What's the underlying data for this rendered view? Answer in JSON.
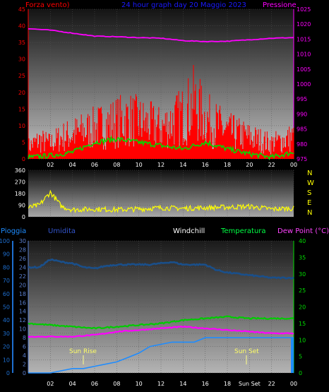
{
  "header": {
    "left_label": "Forza vento)",
    "title": "24 hour graph day  20 Maggio 2023",
    "right_label": "Pressione"
  },
  "legend2": {
    "pioggia": "Pioggia",
    "umidita": "Umidita",
    "windchill": "Windchill",
    "temperatura": "Temperatura",
    "dewpoint": "Dew Point (°C)"
  },
  "compass": [
    "N",
    "W",
    "S",
    "E",
    "N"
  ],
  "annotations": {
    "sun_rise": "Sun Rise",
    "sun_set": "Sun Set"
  },
  "colors": {
    "wind": "#ff0000",
    "gust": "#00dd00",
    "pressure": "#ff00ff",
    "direction": "#ffff00",
    "humidity": "#1a4f8a",
    "temperature": "#00cc00",
    "dewpoint": "#ff00ff",
    "windchill": "#ffffff",
    "rain": "#1e8cff",
    "axis_left1": "#ff0000",
    "axis_right1": "#ff00ff",
    "axis_rain": "#1e6fd0",
    "axis_hum": "#5a7fd0",
    "axis_temp": "#00dd00"
  },
  "chart_data": [
    {
      "type": "line",
      "name": "wind-pressure",
      "x_ticks": [
        "02",
        "04",
        "06",
        "08",
        "10",
        "12",
        "14",
        "16",
        "18",
        "20",
        "22",
        "00"
      ],
      "y_left_ticks": [
        "0",
        "5",
        "10",
        "15",
        "20",
        "25",
        "30",
        "35",
        "40",
        "45"
      ],
      "y_left_range": [
        0,
        45
      ],
      "y_right_ticks": [
        "975",
        "980",
        "985",
        "990",
        "995",
        "1000",
        "1005",
        "1010",
        "1015",
        "1020",
        "1025"
      ],
      "y_right_range": [
        975,
        1025
      ],
      "series": [
        {
          "name": "Pressione",
          "axis": "right",
          "x": [
            0,
            2,
            4,
            6,
            8,
            10,
            12,
            14,
            16,
            18,
            20,
            22,
            24
          ],
          "values": [
            1018.5,
            1018,
            1017,
            1016,
            1015.8,
            1015.5,
            1015.3,
            1014.5,
            1014.2,
            1014.3,
            1014.8,
            1015.3,
            1015.5
          ]
        },
        {
          "name": "Forza vento",
          "axis": "left",
          "x": [
            0,
            1,
            2,
            3,
            4,
            5,
            6,
            7,
            8,
            9,
            10,
            11,
            12,
            13,
            14,
            15,
            16,
            17,
            18,
            19,
            20,
            21,
            22,
            23,
            24
          ],
          "values": [
            4,
            6,
            5,
            7,
            8,
            9,
            10,
            11,
            12,
            13,
            12,
            11,
            10,
            12,
            14,
            18,
            13,
            11,
            9,
            8,
            7,
            6,
            5,
            6,
            7
          ]
        },
        {
          "name": "Raffica",
          "axis": "left",
          "x": [
            0,
            2,
            4,
            6,
            8,
            10,
            12,
            14,
            16,
            18,
            20,
            22,
            24
          ],
          "values": [
            0.5,
            1,
            2,
            5,
            6,
            5,
            4,
            3,
            5,
            3,
            1.5,
            0.5,
            2
          ]
        }
      ]
    },
    {
      "type": "line",
      "name": "wind-direction",
      "y_left_ticks": [
        "0",
        "90",
        "180",
        "270",
        "360"
      ],
      "y_range": [
        0,
        360
      ],
      "series": [
        {
          "name": "Direzione",
          "x": [
            0,
            1,
            2,
            3,
            4,
            6,
            8,
            10,
            12,
            14,
            16,
            18,
            20,
            22,
            24
          ],
          "values": [
            70,
            90,
            190,
            80,
            55,
            60,
            55,
            60,
            70,
            65,
            70,
            75,
            80,
            60,
            65
          ]
        }
      ]
    },
    {
      "type": "line",
      "name": "rain-humidity-temperature",
      "x_ticks": [
        "02",
        "04",
        "06",
        "08",
        "10",
        "12",
        "14",
        "16",
        "18",
        "Sun Set",
        "22",
        "00"
      ],
      "y_rain_ticks": [
        "0",
        "10",
        "20",
        "30",
        "40",
        "50",
        "60",
        "70",
        "80",
        "90",
        "100"
      ],
      "y_rain_range": [
        0,
        100
      ],
      "y_hum_ticks": [
        "0",
        "2",
        "4",
        "6",
        "8",
        "10",
        "12",
        "14",
        "16",
        "18",
        "20",
        "22",
        "24",
        "26",
        "28",
        "30"
      ],
      "y_hum_range": [
        0,
        30
      ],
      "y_temp_ticks": [
        "0",
        "5",
        "10",
        "15",
        "20",
        "25",
        "30",
        "35",
        "40"
      ],
      "y_temp_range": [
        0,
        40
      ],
      "series": [
        {
          "name": "Umidita",
          "axis": "pct",
          "x": [
            0,
            1,
            2,
            3,
            4,
            5,
            6,
            7,
            8,
            9,
            10,
            11,
            12,
            13,
            14,
            15,
            16,
            17,
            18,
            19,
            20,
            21,
            22,
            23,
            24
          ],
          "values": [
            80,
            80,
            86,
            84,
            83,
            80,
            79,
            81,
            82,
            82,
            82,
            82,
            83,
            84,
            82,
            82,
            82,
            78,
            76,
            75,
            74,
            73,
            72,
            72,
            72
          ]
        },
        {
          "name": "Temperatura",
          "axis": "temp",
          "x": [
            0,
            2,
            4,
            6,
            8,
            10,
            12,
            14,
            16,
            18,
            20,
            22,
            24
          ],
          "values": [
            15,
            14.5,
            14,
            13.5,
            14,
            14.5,
            15,
            16,
            16.5,
            17,
            16.5,
            16.5,
            16.5
          ]
        },
        {
          "name": "Dew Point",
          "axis": "temp",
          "x": [
            0,
            2,
            4,
            6,
            8,
            10,
            12,
            14,
            16,
            18,
            20,
            22,
            24
          ],
          "values": [
            11,
            11,
            11,
            11.5,
            12.5,
            13,
            13.5,
            14,
            13.5,
            13,
            12.5,
            12,
            12
          ]
        },
        {
          "name": "Pioggia",
          "axis": "rain",
          "x": [
            0,
            2,
            3,
            4,
            5,
            6,
            7,
            8,
            9,
            10,
            11,
            12,
            13,
            14,
            15,
            16,
            17,
            18,
            19,
            20,
            21,
            22,
            23,
            24
          ],
          "values": [
            0,
            0,
            0.5,
            1,
            1,
            1.5,
            2,
            2.5,
            3.5,
            4.5,
            6,
            6.5,
            7,
            7,
            7,
            8,
            8,
            8,
            8,
            8,
            8,
            8,
            8,
            8
          ]
        }
      ]
    }
  ]
}
